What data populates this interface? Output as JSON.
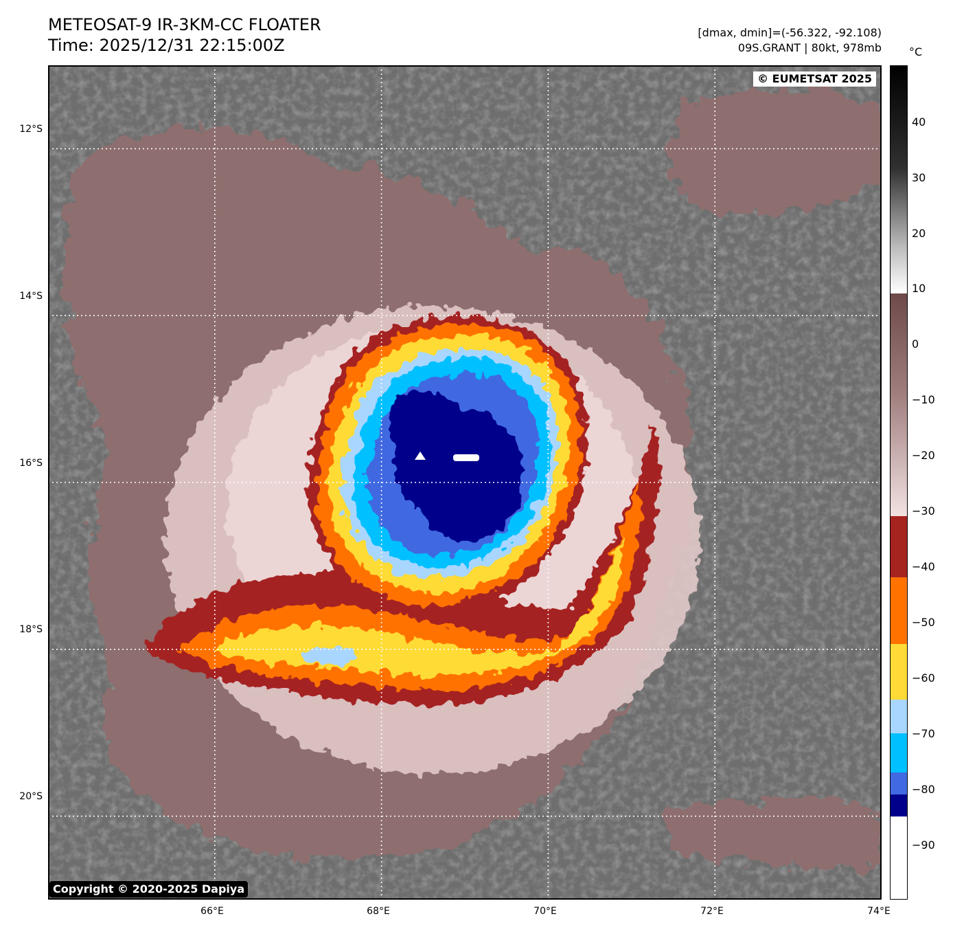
{
  "header": {
    "title_line1": "METEOSAT-9 IR-3KM-CC FLOATER",
    "title_line2": "Time: 2025/12/31 22:15:00Z",
    "stats_line": "[dmax, dmin]=(-56.322, -92.108)",
    "storm_line": "09S.GRANT | 80kt, 978mb"
  },
  "map": {
    "lon_range": [
      64,
      74
    ],
    "lat_range": [
      -21,
      -11
    ],
    "lat_ticks": [
      {
        "value": -12,
        "label": "12°S"
      },
      {
        "value": -14,
        "label": "14°S"
      },
      {
        "value": -16,
        "label": "16°S"
      },
      {
        "value": -18,
        "label": "18°S"
      },
      {
        "value": -20,
        "label": "20°S"
      }
    ],
    "lon_ticks": [
      {
        "value": 66,
        "label": "66°E"
      },
      {
        "value": 68,
        "label": "68°E"
      },
      {
        "value": 70,
        "label": "70°E"
      },
      {
        "value": 72,
        "label": "72°E"
      },
      {
        "value": 74,
        "label": "74°E"
      }
    ],
    "grid": "dotted",
    "grid_color": "#ffffff",
    "storm_center": {
      "lon": 69.1,
      "lat": -15.8
    },
    "coldest_cloud_top": -92.108,
    "warmest_cloud_top": -56.322
  },
  "colorbar": {
    "unit": "°C",
    "range": [
      -100,
      50
    ],
    "ticks": [
      "40",
      "30",
      "20",
      "10",
      "0",
      "−10",
      "−20",
      "−30",
      "−40",
      "−50",
      "−60",
      "−70",
      "−80",
      "−90"
    ],
    "tick_values": [
      40,
      30,
      20,
      10,
      0,
      -10,
      -20,
      -30,
      -40,
      -50,
      -60,
      -70,
      -80,
      -90
    ],
    "bands": [
      {
        "from": 10,
        "to": 50,
        "colors": [
          "#ffffff",
          "#000000"
        ]
      },
      {
        "from": -30,
        "to": 9,
        "colors": [
          "#f2e1e1",
          "#6e4a4a"
        ]
      },
      {
        "from": -41,
        "to": -30,
        "color": "#a52420"
      },
      {
        "from": -53,
        "to": -41,
        "color": "#ff7200"
      },
      {
        "from": -63,
        "to": -53,
        "color": "#fedb36"
      },
      {
        "from": -69,
        "to": -63,
        "color": "#a8d6ff"
      },
      {
        "from": -76,
        "to": -69,
        "color": "#00c0ff"
      },
      {
        "from": -80,
        "to": -76,
        "color": "#4169e1"
      },
      {
        "from": -84,
        "to": -80,
        "color": "#00008b"
      },
      {
        "from": -100,
        "to": -84,
        "color": "#ffffff"
      }
    ]
  },
  "badges": {
    "eumetsat": "© EUMETSAT 2025",
    "copyright": "Copyright © 2020-2025 Dapiya"
  }
}
